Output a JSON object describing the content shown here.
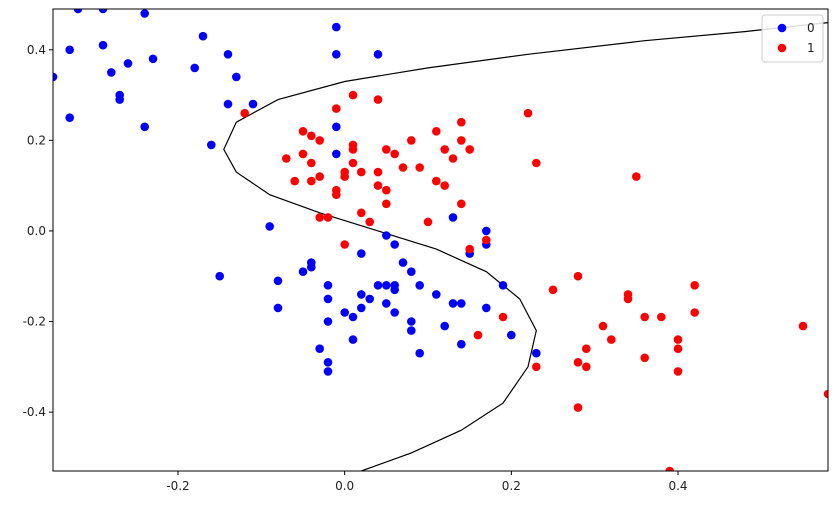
{
  "chart_data": {
    "type": "scatter",
    "title": "",
    "xlabel": "",
    "ylabel": "",
    "xlim": [
      -0.35,
      0.58
    ],
    "ylim": [
      -0.53,
      0.49
    ],
    "x_ticks": [
      "-0.2",
      "0.0",
      "0.2",
      "0.4"
    ],
    "y_ticks": [
      "0.4",
      "0.2",
      "0.0",
      "-0.2",
      "-0.4"
    ],
    "x_tick_values": [
      -0.2,
      0.0,
      0.2,
      0.4
    ],
    "y_tick_values": [
      0.4,
      0.2,
      0.0,
      -0.2,
      -0.4
    ],
    "grid": false,
    "legend_position": "top-right",
    "decision_boundary": {
      "color": "#000000",
      "points": [
        [
          0.02,
          -0.53
        ],
        [
          0.08,
          -0.49
        ],
        [
          0.14,
          -0.44
        ],
        [
          0.19,
          -0.38
        ],
        [
          0.22,
          -0.3
        ],
        [
          0.23,
          -0.22
        ],
        [
          0.21,
          -0.15
        ],
        [
          0.17,
          -0.09
        ],
        [
          0.11,
          -0.04
        ],
        [
          0.04,
          0.0
        ],
        [
          -0.03,
          0.04
        ],
        [
          -0.09,
          0.08
        ],
        [
          -0.13,
          0.13
        ],
        [
          -0.145,
          0.18
        ],
        [
          -0.13,
          0.24
        ],
        [
          -0.08,
          0.29
        ],
        [
          0.0,
          0.33
        ],
        [
          0.1,
          0.36
        ],
        [
          0.22,
          0.39
        ],
        [
          0.36,
          0.42
        ],
        [
          0.48,
          0.44
        ],
        [
          0.58,
          0.46
        ]
      ]
    },
    "series": [
      {
        "name": "0",
        "color": "#0000ff",
        "points": [
          [
            -0.35,
            0.34
          ],
          [
            -0.32,
            0.49
          ],
          [
            -0.29,
            0.49
          ],
          [
            -0.33,
            0.4
          ],
          [
            -0.29,
            0.41
          ],
          [
            -0.28,
            0.35
          ],
          [
            -0.26,
            0.37
          ],
          [
            -0.27,
            0.3
          ],
          [
            -0.27,
            0.29
          ],
          [
            -0.33,
            0.25
          ],
          [
            -0.24,
            0.48
          ],
          [
            -0.24,
            0.23
          ],
          [
            -0.23,
            0.38
          ],
          [
            -0.18,
            0.36
          ],
          [
            -0.17,
            0.43
          ],
          [
            -0.14,
            0.39
          ],
          [
            -0.13,
            0.34
          ],
          [
            -0.14,
            0.28
          ],
          [
            -0.11,
            0.28
          ],
          [
            -0.16,
            0.19
          ],
          [
            -0.01,
            0.45
          ],
          [
            -0.01,
            0.39
          ],
          [
            0.04,
            0.39
          ],
          [
            -0.01,
            0.23
          ],
          [
            -0.01,
            0.17
          ],
          [
            -0.09,
            0.01
          ],
          [
            -0.15,
            -0.1
          ],
          [
            -0.08,
            -0.11
          ],
          [
            -0.08,
            -0.17
          ],
          [
            -0.05,
            -0.09
          ],
          [
            -0.04,
            -0.07
          ],
          [
            -0.04,
            -0.08
          ],
          [
            -0.02,
            -0.12
          ],
          [
            -0.02,
            -0.15
          ],
          [
            -0.02,
            -0.2
          ],
          [
            -0.03,
            -0.26
          ],
          [
            -0.02,
            -0.29
          ],
          [
            -0.02,
            -0.31
          ],
          [
            0.0,
            -0.18
          ],
          [
            0.01,
            -0.19
          ],
          [
            0.01,
            -0.24
          ],
          [
            0.02,
            -0.14
          ],
          [
            0.02,
            -0.17
          ],
          [
            0.03,
            -0.15
          ],
          [
            0.02,
            -0.05
          ],
          [
            0.04,
            -0.12
          ],
          [
            0.05,
            -0.12
          ],
          [
            0.05,
            -0.16
          ],
          [
            0.06,
            -0.13
          ],
          [
            0.06,
            -0.12
          ],
          [
            0.06,
            -0.18
          ],
          [
            0.05,
            -0.01
          ],
          [
            0.06,
            -0.03
          ],
          [
            0.07,
            -0.07
          ],
          [
            0.08,
            -0.09
          ],
          [
            0.08,
            -0.2
          ],
          [
            0.08,
            -0.22
          ],
          [
            0.09,
            -0.12
          ],
          [
            0.09,
            -0.27
          ],
          [
            0.11,
            -0.14
          ],
          [
            0.12,
            -0.21
          ],
          [
            0.13,
            -0.16
          ],
          [
            0.14,
            -0.16
          ],
          [
            0.14,
            -0.25
          ],
          [
            0.13,
            0.03
          ],
          [
            0.15,
            -0.05
          ],
          [
            0.17,
            0.0
          ],
          [
            0.17,
            -0.03
          ],
          [
            0.17,
            -0.17
          ],
          [
            0.19,
            -0.12
          ],
          [
            0.2,
            -0.23
          ],
          [
            0.23,
            -0.27
          ]
        ]
      },
      {
        "name": "1",
        "color": "#ff0000",
        "points": [
          [
            -0.12,
            0.26
          ],
          [
            -0.07,
            0.16
          ],
          [
            -0.06,
            0.11
          ],
          [
            -0.05,
            0.22
          ],
          [
            -0.05,
            0.17
          ],
          [
            -0.04,
            0.21
          ],
          [
            -0.04,
            0.15
          ],
          [
            -0.04,
            0.11
          ],
          [
            -0.03,
            0.2
          ],
          [
            -0.03,
            0.12
          ],
          [
            -0.03,
            0.03
          ],
          [
            -0.02,
            0.03
          ],
          [
            -0.01,
            0.27
          ],
          [
            -0.01,
            0.09
          ],
          [
            -0.01,
            0.08
          ],
          [
            0.0,
            0.13
          ],
          [
            0.0,
            0.12
          ],
          [
            0.0,
            -0.03
          ],
          [
            0.01,
            0.3
          ],
          [
            0.01,
            0.19
          ],
          [
            0.01,
            0.18
          ],
          [
            0.01,
            0.15
          ],
          [
            0.02,
            0.13
          ],
          [
            0.02,
            0.04
          ],
          [
            0.03,
            0.02
          ],
          [
            0.04,
            0.29
          ],
          [
            0.04,
            0.13
          ],
          [
            0.04,
            0.1
          ],
          [
            0.05,
            0.18
          ],
          [
            0.05,
            0.09
          ],
          [
            0.05,
            0.06
          ],
          [
            0.06,
            0.17
          ],
          [
            0.07,
            0.14
          ],
          [
            0.08,
            0.2
          ],
          [
            0.09,
            0.14
          ],
          [
            0.1,
            0.02
          ],
          [
            0.11,
            0.22
          ],
          [
            0.11,
            0.11
          ],
          [
            0.12,
            0.18
          ],
          [
            0.12,
            0.1
          ],
          [
            0.13,
            0.16
          ],
          [
            0.14,
            0.24
          ],
          [
            0.14,
            0.2
          ],
          [
            0.14,
            0.06
          ],
          [
            0.15,
            0.18
          ],
          [
            0.15,
            -0.04
          ],
          [
            0.16,
            -0.23
          ],
          [
            0.17,
            -0.02
          ],
          [
            0.19,
            -0.19
          ],
          [
            0.22,
            0.26
          ],
          [
            0.23,
            0.15
          ],
          [
            0.23,
            -0.3
          ],
          [
            0.25,
            -0.13
          ],
          [
            0.28,
            -0.1
          ],
          [
            0.28,
            -0.29
          ],
          [
            0.28,
            -0.39
          ],
          [
            0.29,
            -0.26
          ],
          [
            0.29,
            -0.3
          ],
          [
            0.31,
            -0.21
          ],
          [
            0.32,
            -0.24
          ],
          [
            0.34,
            -0.14
          ],
          [
            0.34,
            -0.15
          ],
          [
            0.35,
            0.12
          ],
          [
            0.36,
            -0.19
          ],
          [
            0.36,
            -0.28
          ],
          [
            0.38,
            -0.19
          ],
          [
            0.39,
            -0.53
          ],
          [
            0.4,
            -0.24
          ],
          [
            0.4,
            -0.26
          ],
          [
            0.4,
            -0.31
          ],
          [
            0.42,
            -0.12
          ],
          [
            0.42,
            -0.18
          ],
          [
            0.55,
            -0.21
          ],
          [
            0.58,
            -0.36
          ]
        ]
      }
    ]
  }
}
